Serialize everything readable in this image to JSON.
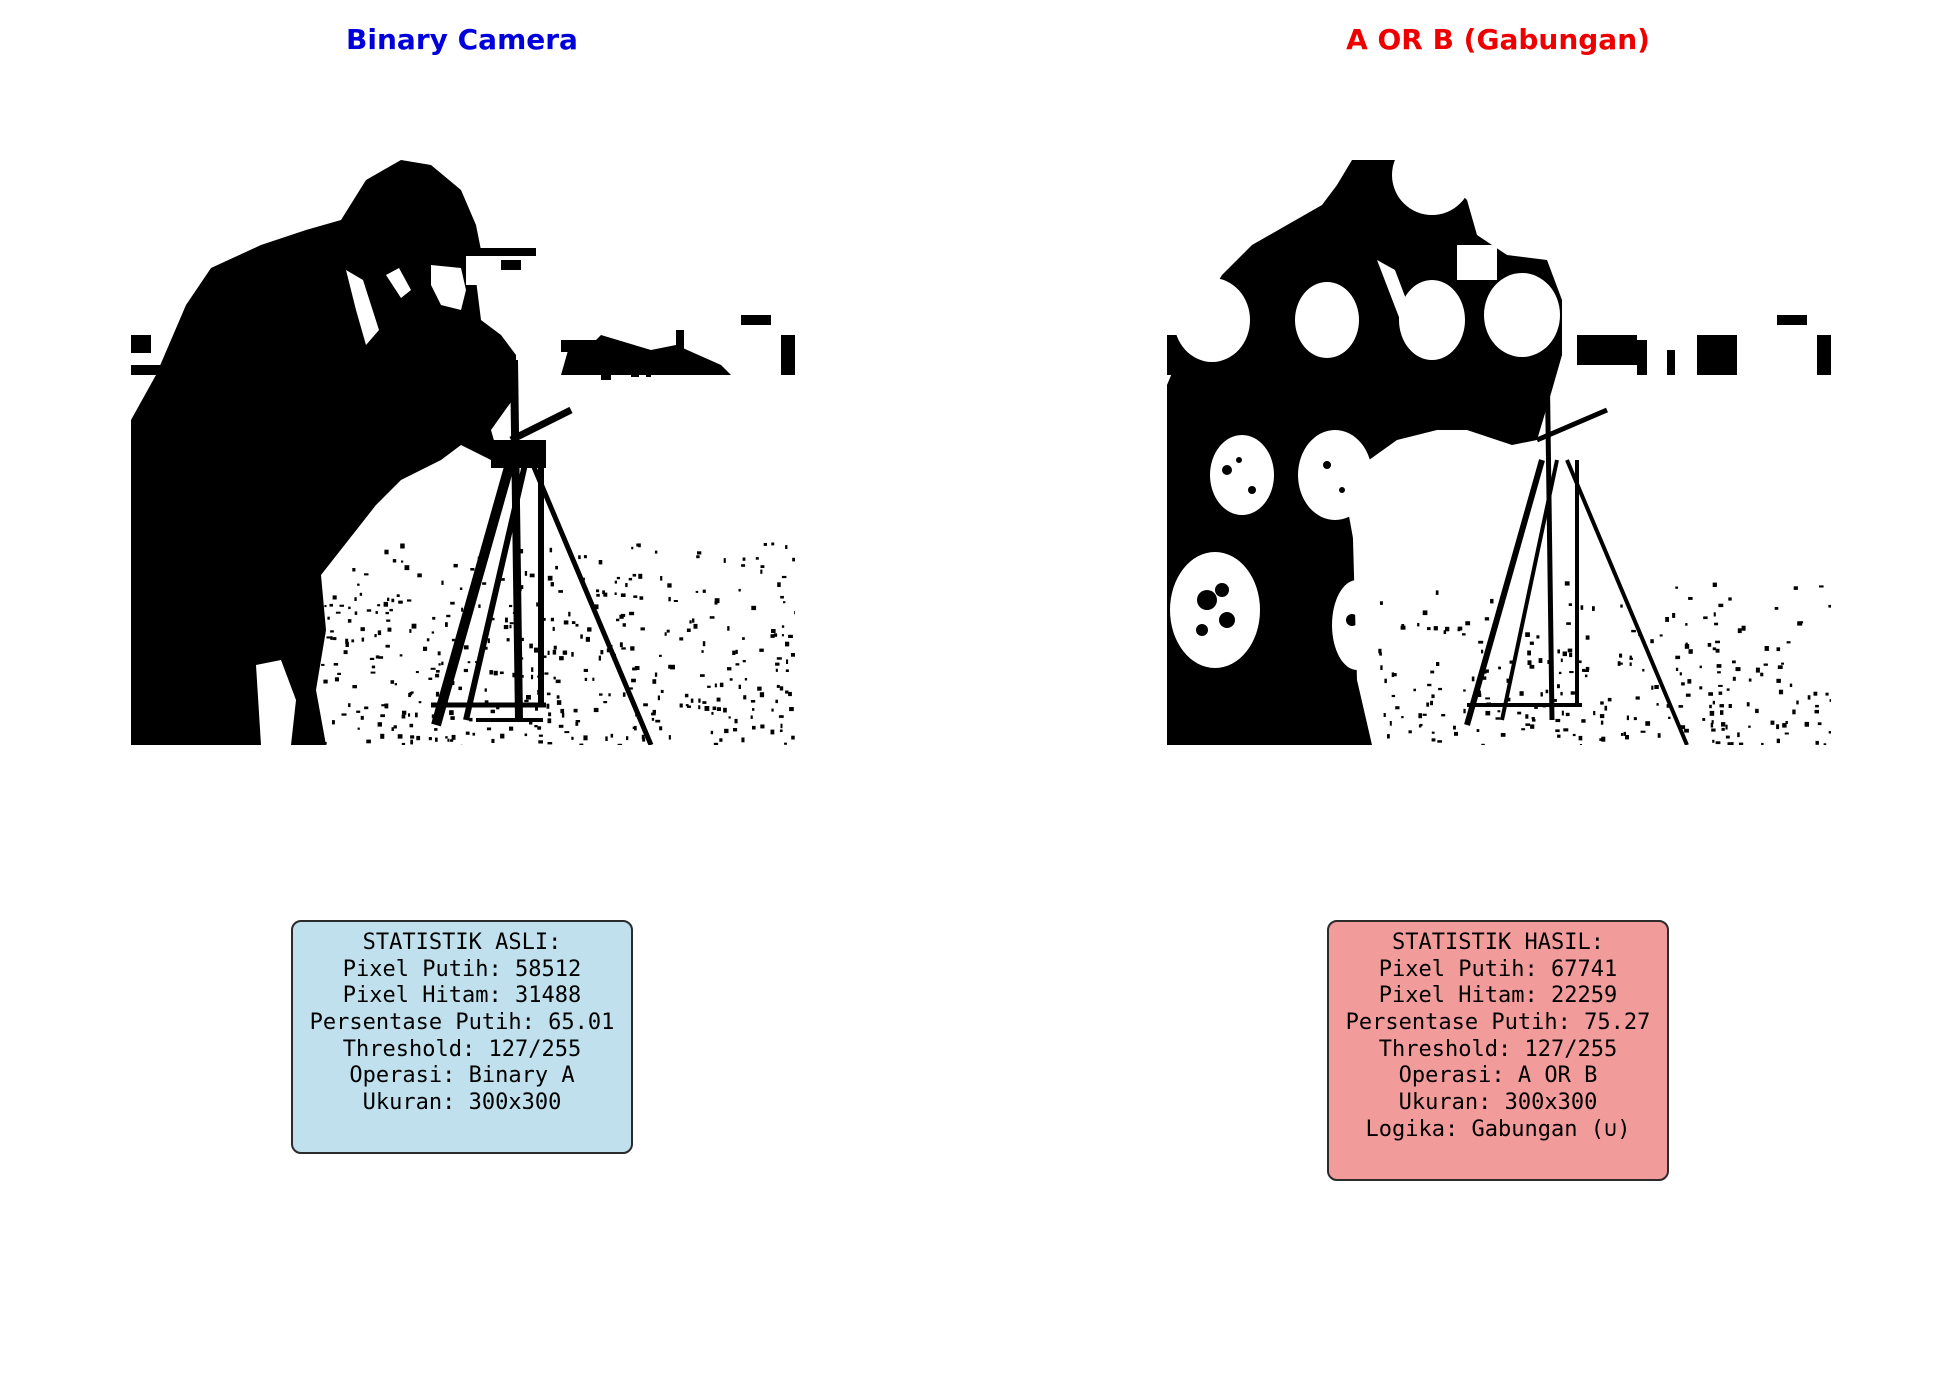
{
  "left_panel": {
    "title": "Binary Camera",
    "title_color": "#0000dd",
    "stats_bg": "#bfe0ec",
    "image_subject": "binary-thresholded cameraman photograph",
    "stats": {
      "heading": "STATISTIK ASLI:",
      "lines": [
        "Pixel Putih: 58512",
        "Pixel Hitam: 31488",
        "Persentase Putih: 65.01",
        "Threshold: 127/255",
        "Operasi: Binary A",
        "Ukuran: 300x300"
      ]
    }
  },
  "right_panel": {
    "title": "A OR B (Gabungan)",
    "title_color": "#ee0000",
    "stats_bg": "#f29b9b",
    "image_subject": "OR combination of binary cameraman and binary coins image",
    "stats": {
      "heading": "STATISTIK HASIL:",
      "lines": [
        "Pixel Putih: 67741",
        "Pixel Hitam: 22259",
        "Persentase Putih: 75.27",
        "Threshold: 127/255",
        "Operasi: A OR B",
        "Ukuran: 300x300",
        "Logika: Gabungan (∪)"
      ]
    }
  }
}
